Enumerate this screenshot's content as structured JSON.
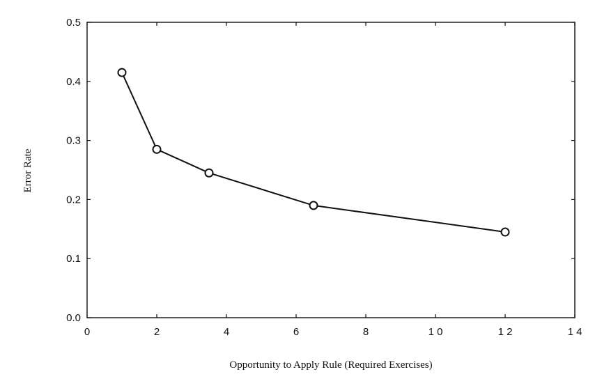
{
  "chart_data": {
    "type": "line",
    "title": "",
    "xlabel": "Opportunity to Apply Rule (Required Exercises)",
    "ylabel": "Error Rate",
    "xlim": [
      0,
      14
    ],
    "ylim": [
      0.0,
      0.5
    ],
    "xticks": [
      0,
      2,
      4,
      6,
      8,
      10,
      12,
      14
    ],
    "xtick_labels": [
      "0",
      "2",
      "4",
      "6",
      "8",
      "1 0",
      "1 2",
      "1 4"
    ],
    "yticks": [
      0.0,
      0.1,
      0.2,
      0.3,
      0.4,
      0.5
    ],
    "ytick_labels": [
      "0.0",
      "0.1",
      "0.2",
      "0.3",
      "0.4",
      "0.5"
    ],
    "grid": false,
    "legend": "none",
    "series": [
      {
        "x": [
          1,
          2,
          3.5,
          6.5,
          12
        ],
        "y": [
          0.415,
          0.285,
          0.245,
          0.19,
          0.145
        ],
        "marker": "open-circle",
        "color": "#111111"
      }
    ]
  }
}
